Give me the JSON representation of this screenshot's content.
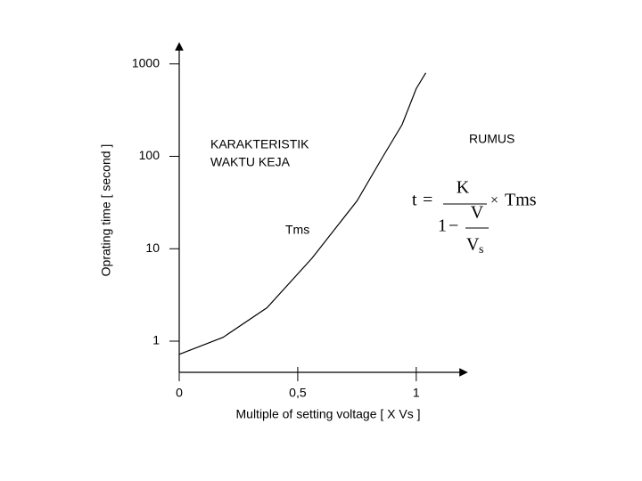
{
  "chart_data": {
    "type": "line",
    "y_label": "Oprating  time [ second ]",
    "x_label": "Multiple of setting voltage  [ X Vs ]",
    "annotations": [
      "KARAKTERISTIK",
      "WAKTU KEJA",
      "RUMUS",
      "Tms"
    ],
    "formula": {
      "lhs": "t",
      "eq": "=",
      "numerator": "K",
      "one": "1",
      "minus": "−",
      "inner_num": "V",
      "inner_den": "V",
      "inner_den_sub": "s",
      "times": "×",
      "factor": "Tms"
    },
    "x": [
      0,
      0.185,
      0.37,
      0.56,
      0.75,
      0.86,
      0.94,
      1.0,
      1.04
    ],
    "series": [
      {
        "color": "#000000",
        "values": [
          0.72,
          1.1,
          2.3,
          7.9,
          33,
          100,
          220,
          540,
          800
        ]
      }
    ],
    "xlim": [
      0,
      1.2
    ],
    "xticks": [
      0,
      {
        "value": 0.5,
        "label": "0,5"
      },
      1
    ],
    "ylim": [
      0.46,
      1550
    ],
    "yticks": [
      1,
      10,
      100,
      1000
    ],
    "y_log": true
  }
}
